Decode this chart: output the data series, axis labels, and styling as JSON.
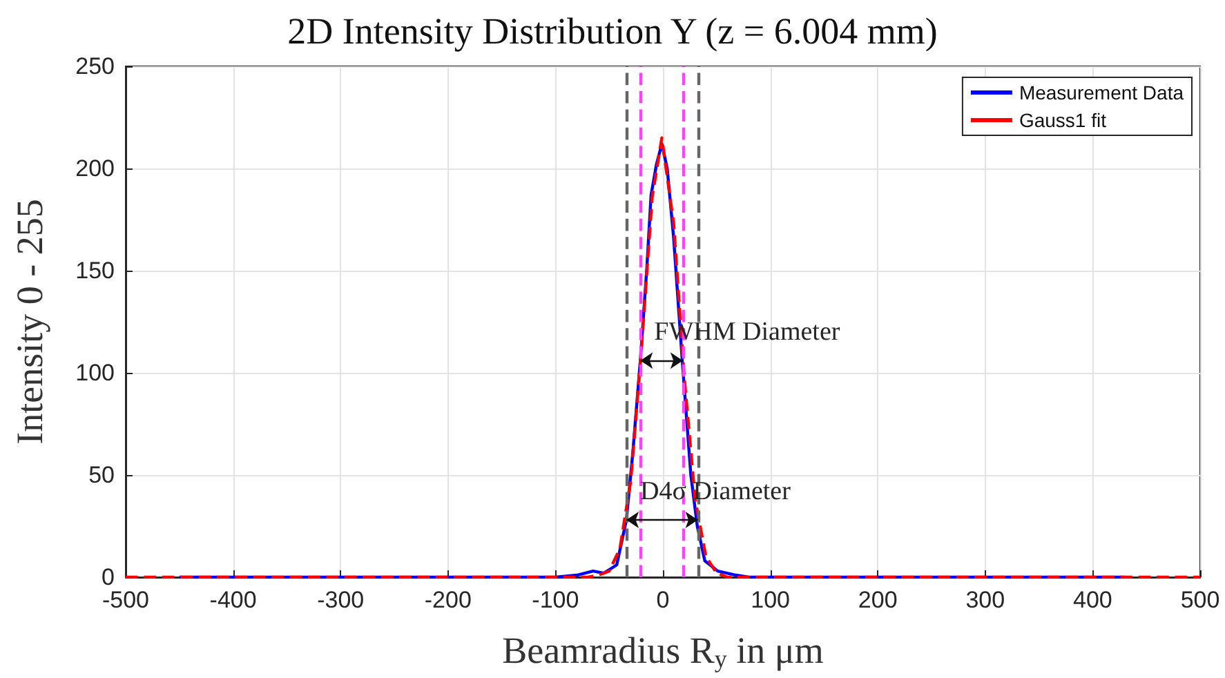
{
  "chart_data": {
    "type": "line",
    "title": "2D Intensity Distribution Y (z = 6.004 mm)",
    "xlabel": "Beamradius R$_{y}$ in μm",
    "ylabel": "Intensity 0 - 255",
    "series": [
      {
        "name": "Measurement Data",
        "color": "#0000ff",
        "line_style": "solid",
        "x": [
          -450,
          -300,
          -200,
          -100,
          -80,
          -65,
          -55,
          -43,
          -34,
          -28,
          -21,
          -15,
          -11,
          -6,
          -1,
          4,
          10,
          18,
          26,
          32,
          39,
          51,
          68,
          80,
          200,
          300,
          430
        ],
        "values": [
          0,
          0,
          0,
          0,
          1,
          3,
          2,
          6,
          28,
          61,
          106,
          151,
          187,
          202,
          212,
          200,
          166,
          106,
          50,
          25,
          8,
          3,
          1,
          0,
          0,
          0,
          0
        ]
      },
      {
        "name": "Gauss1 fit",
        "color": "#ff0000",
        "line_style": "dashed",
        "x": [
          -500,
          -300,
          -100,
          -70,
          -60,
          -50,
          -40,
          -30,
          -20,
          -10,
          -1,
          10,
          20,
          30,
          40,
          50,
          60,
          70,
          100,
          300,
          500
        ],
        "values": [
          0,
          0,
          0,
          0,
          1,
          3,
          14,
          47,
          112,
          186,
          215,
          173,
          97,
          38,
          10,
          2,
          0,
          0,
          0,
          0,
          0
        ]
      }
    ],
    "xlim": [
      -500,
      500
    ],
    "xticks": [
      -500,
      -400,
      -300,
      -200,
      -100,
      0,
      100,
      200,
      300,
      400,
      500
    ],
    "ylim": [
      0,
      250
    ],
    "yticks": [
      0,
      50,
      100,
      150,
      200,
      250
    ],
    "grid": true,
    "legend": "top right",
    "marker": "none",
    "ref_lines": [
      {
        "axis": "x",
        "value": -34,
        "color": "#666666",
        "line_style": "dashed"
      },
      {
        "axis": "x",
        "value": 32.5,
        "color": "#666666",
        "line_style": "dashed"
      },
      {
        "axis": "x",
        "value": -21,
        "color": "#ff40ff",
        "line_style": "dashed"
      },
      {
        "axis": "x",
        "value": 18.5,
        "color": "#ff40ff",
        "line_style": "dashed"
      }
    ],
    "annotations": [
      "FWHM Diameter",
      "D4σ Diameter"
    ]
  }
}
